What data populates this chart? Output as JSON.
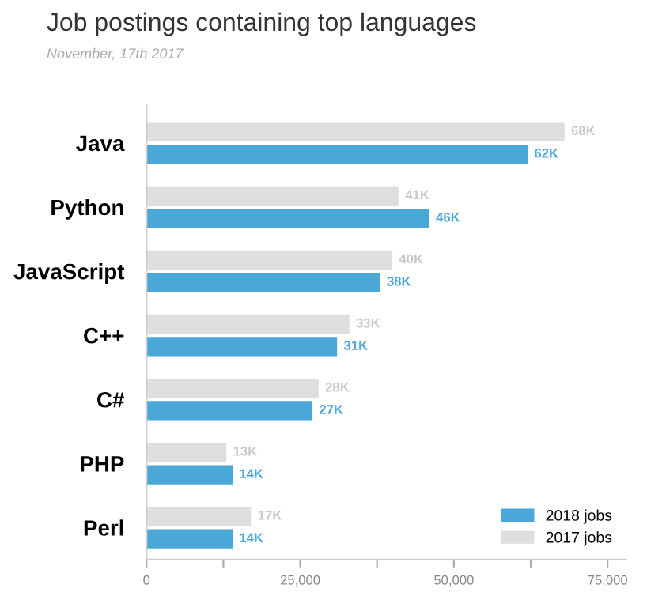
{
  "chart_data": {
    "type": "bar",
    "orientation": "horizontal",
    "title": "Job postings containing top languages",
    "subtitle": "November, 17th 2017",
    "categories": [
      "Java",
      "Python",
      "JavaScript",
      "C++",
      "C#",
      "PHP",
      "Perl"
    ],
    "series": [
      {
        "name": "2017 jobs",
        "color": "#dedede",
        "values": [
          68000,
          41000,
          40000,
          33000,
          28000,
          13000,
          17000
        ],
        "value_labels": [
          "68K",
          "41K",
          "40K",
          "33K",
          "28K",
          "13K",
          "17K"
        ]
      },
      {
        "name": "2018 jobs",
        "color": "#4aa8d8",
        "values": [
          62000,
          46000,
          38000,
          31000,
          27000,
          14000,
          14000
        ],
        "value_labels": [
          "62K",
          "46K",
          "38K",
          "31K",
          "27K",
          "14K",
          "14K"
        ]
      }
    ],
    "xlim": [
      0,
      78000
    ],
    "xticks": [
      0,
      {
        "value": 12500,
        "label": null
      },
      {
        "value": 25000,
        "label": "25,000"
      },
      {
        "value": 37500,
        "label": null
      },
      {
        "value": 50000,
        "label": "50,000"
      },
      {
        "value": 62500,
        "label": null
      },
      {
        "value": 75000,
        "label": "75,000"
      }
    ],
    "grid": false,
    "legend": "bottom right"
  }
}
